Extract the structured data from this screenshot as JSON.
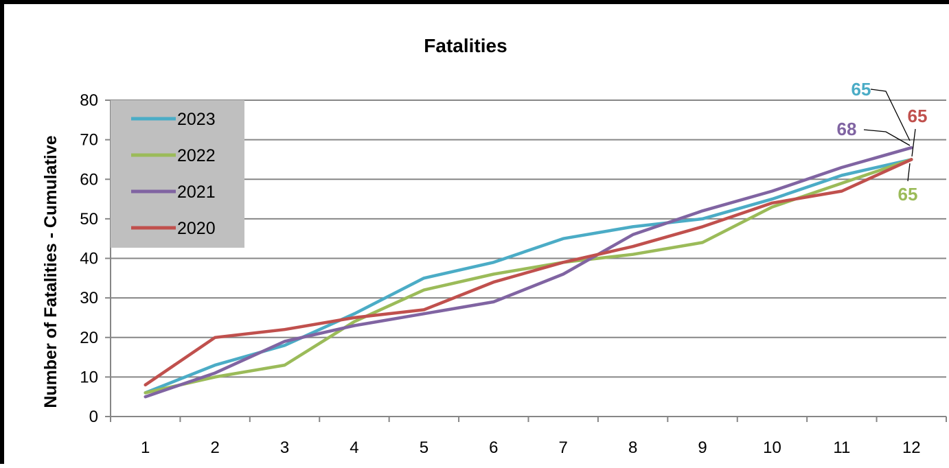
{
  "chart_data": {
    "type": "line",
    "title": "Fatalities",
    "xlabel": "",
    "ylabel": "Number of Fatalities - Cumulative",
    "categories": [
      "1",
      "2",
      "3",
      "4",
      "5",
      "6",
      "7",
      "8",
      "9",
      "10",
      "11",
      "12"
    ],
    "ylim": [
      0,
      80
    ],
    "yticks": [
      "0",
      "10",
      "20",
      "30",
      "40",
      "50",
      "60",
      "70",
      "80"
    ],
    "grid": true,
    "legend_position": "top-left",
    "series": [
      {
        "name": "2023",
        "color": "#4BACC6",
        "values": [
          6,
          13,
          18,
          26,
          35,
          39,
          45,
          48,
          50,
          55,
          61,
          65
        ]
      },
      {
        "name": "2022",
        "color": "#9BBB59",
        "values": [
          6,
          10,
          13,
          24,
          32,
          36,
          39,
          41,
          44,
          53,
          59,
          65
        ]
      },
      {
        "name": "2021",
        "color": "#8064A2",
        "values": [
          5,
          11,
          19,
          23,
          26,
          29,
          36,
          46,
          52,
          57,
          63,
          68
        ]
      },
      {
        "name": "2020",
        "color": "#C0504D",
        "values": [
          8,
          20,
          22,
          25,
          27,
          34,
          39,
          43,
          48,
          54,
          57,
          65
        ]
      }
    ],
    "annotations": [
      {
        "text": "65",
        "series": "2023",
        "color": "#4BACC6"
      },
      {
        "text": "68",
        "series": "2021",
        "color": "#8064A2"
      },
      {
        "text": "65",
        "series": "2020",
        "color": "#C0504D"
      },
      {
        "text": "65",
        "series": "2022",
        "color": "#9BBB59"
      }
    ]
  }
}
